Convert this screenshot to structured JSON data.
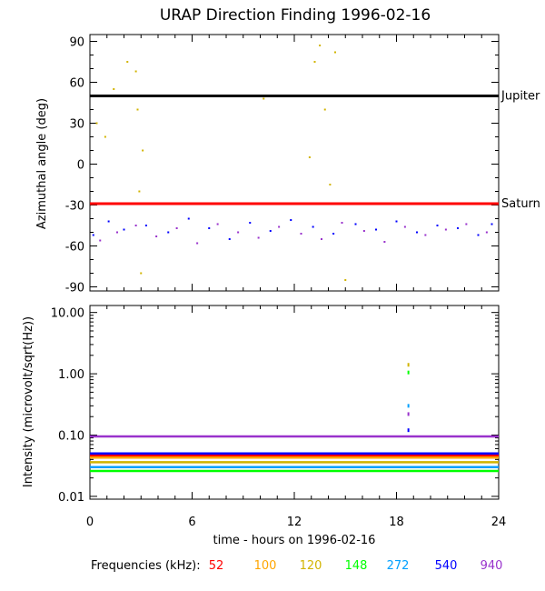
{
  "title": "URAP Direction Finding  1996-02-16",
  "x_axis": {
    "label": "time - hours on 1996-02-16",
    "range": [
      0,
      24
    ],
    "ticks": [
      "0",
      "6",
      "12",
      "18",
      "24"
    ]
  },
  "frequencies_label": "Frequencies (kHz):",
  "frequencies": [
    {
      "label": "52",
      "color": "#ff0000"
    },
    {
      "label": "100",
      "color": "#ffa500"
    },
    {
      "label": "120",
      "color": "#d2b400"
    },
    {
      "label": "148",
      "color": "#00ff00"
    },
    {
      "label": "272",
      "color": "#00a0ff"
    },
    {
      "label": "540",
      "color": "#0000ff"
    },
    {
      "label": "940",
      "color": "#9932cc"
    }
  ],
  "chart_data": [
    {
      "type": "scatter",
      "ylabel": "Azimuthal angle (deg)",
      "xlim": [
        0,
        24
      ],
      "ylim": [
        -93,
        95
      ],
      "yticks": [
        "90",
        "60",
        "30",
        "0",
        "-30",
        "-60",
        "-90"
      ],
      "reference_lines": [
        {
          "name": "Jupiter",
          "y": 50,
          "color": "#000000"
        },
        {
          "name": "Saturn",
          "y": -29,
          "color": "#ff0000"
        }
      ],
      "series": [
        {
          "frequency": "540",
          "color": "#0000ff",
          "x": [
            0.2,
            1.1,
            2.0,
            3.3,
            4.6,
            5.8,
            7.0,
            8.2,
            9.4,
            10.6,
            11.8,
            13.1,
            14.3,
            15.6,
            16.8,
            18.0,
            19.2,
            20.4,
            21.6,
            22.8,
            23.6
          ],
          "y": [
            -52,
            -42,
            -48,
            -45,
            -50,
            -40,
            -47,
            -55,
            -43,
            -49,
            -41,
            -46,
            -51,
            -44,
            -48,
            -42,
            -50,
            -45,
            -47,
            -52,
            -44
          ]
        },
        {
          "frequency": "940",
          "color": "#9932cc",
          "x": [
            0.6,
            1.6,
            2.7,
            3.9,
            5.1,
            6.3,
            7.5,
            8.7,
            9.9,
            11.1,
            12.4,
            13.6,
            14.8,
            16.1,
            17.3,
            18.5,
            19.7,
            20.9,
            22.1,
            23.3
          ],
          "y": [
            -56,
            -50,
            -45,
            -53,
            -47,
            -58,
            -44,
            -50,
            -54,
            -46,
            -51,
            -55,
            -43,
            -49,
            -57,
            -46,
            -52,
            -48,
            -44,
            -50
          ]
        },
        {
          "frequency": "120",
          "color": "#d2b400",
          "x": [
            0.4,
            0.9,
            1.4,
            2.2,
            2.7,
            2.8,
            2.9,
            3.0,
            3.1,
            10.2,
            12.9,
            13.2,
            13.5,
            13.8,
            14.1,
            14.4,
            15.0
          ],
          "y": [
            30,
            20,
            55,
            75,
            68,
            40,
            -20,
            -80,
            10,
            48,
            5,
            75,
            87,
            40,
            -15,
            82,
            -85
          ]
        }
      ]
    },
    {
      "type": "line",
      "ylabel": "Intensity (microvolt/sqrt(Hz))",
      "xlim": [
        0,
        24
      ],
      "ylim": [
        0.009,
        13
      ],
      "yscale": "log",
      "yticks": [
        "10.00",
        "1.00",
        "0.10",
        "0.01"
      ],
      "x": [
        0,
        24
      ],
      "series": [
        {
          "frequency": "52",
          "color": "#ff0000",
          "values": [
            0.046,
            0.046
          ]
        },
        {
          "frequency": "100",
          "color": "#ffa500",
          "values": [
            0.043,
            0.043
          ]
        },
        {
          "frequency": "120",
          "color": "#d2b400",
          "values": [
            0.036,
            0.036
          ]
        },
        {
          "frequency": "148",
          "color": "#00ff00",
          "values": [
            0.026,
            0.026
          ]
        },
        {
          "frequency": "272",
          "color": "#00a0ff",
          "values": [
            0.03,
            0.03
          ]
        },
        {
          "frequency": "540",
          "color": "#0000ff",
          "values": [
            0.05,
            0.05
          ]
        },
        {
          "frequency": "940",
          "color": "#9932cc",
          "values": [
            0.095,
            0.095
          ]
        }
      ],
      "burst": [
        {
          "x": 18.7,
          "y": 1.4,
          "color": "#d2b400"
        },
        {
          "x": 18.7,
          "y": 1.05,
          "color": "#00ff00"
        },
        {
          "x": 18.7,
          "y": 0.3,
          "color": "#00a0ff"
        },
        {
          "x": 18.7,
          "y": 0.22,
          "color": "#9932cc"
        },
        {
          "x": 18.7,
          "y": 0.12,
          "color": "#0000ff"
        }
      ]
    }
  ]
}
